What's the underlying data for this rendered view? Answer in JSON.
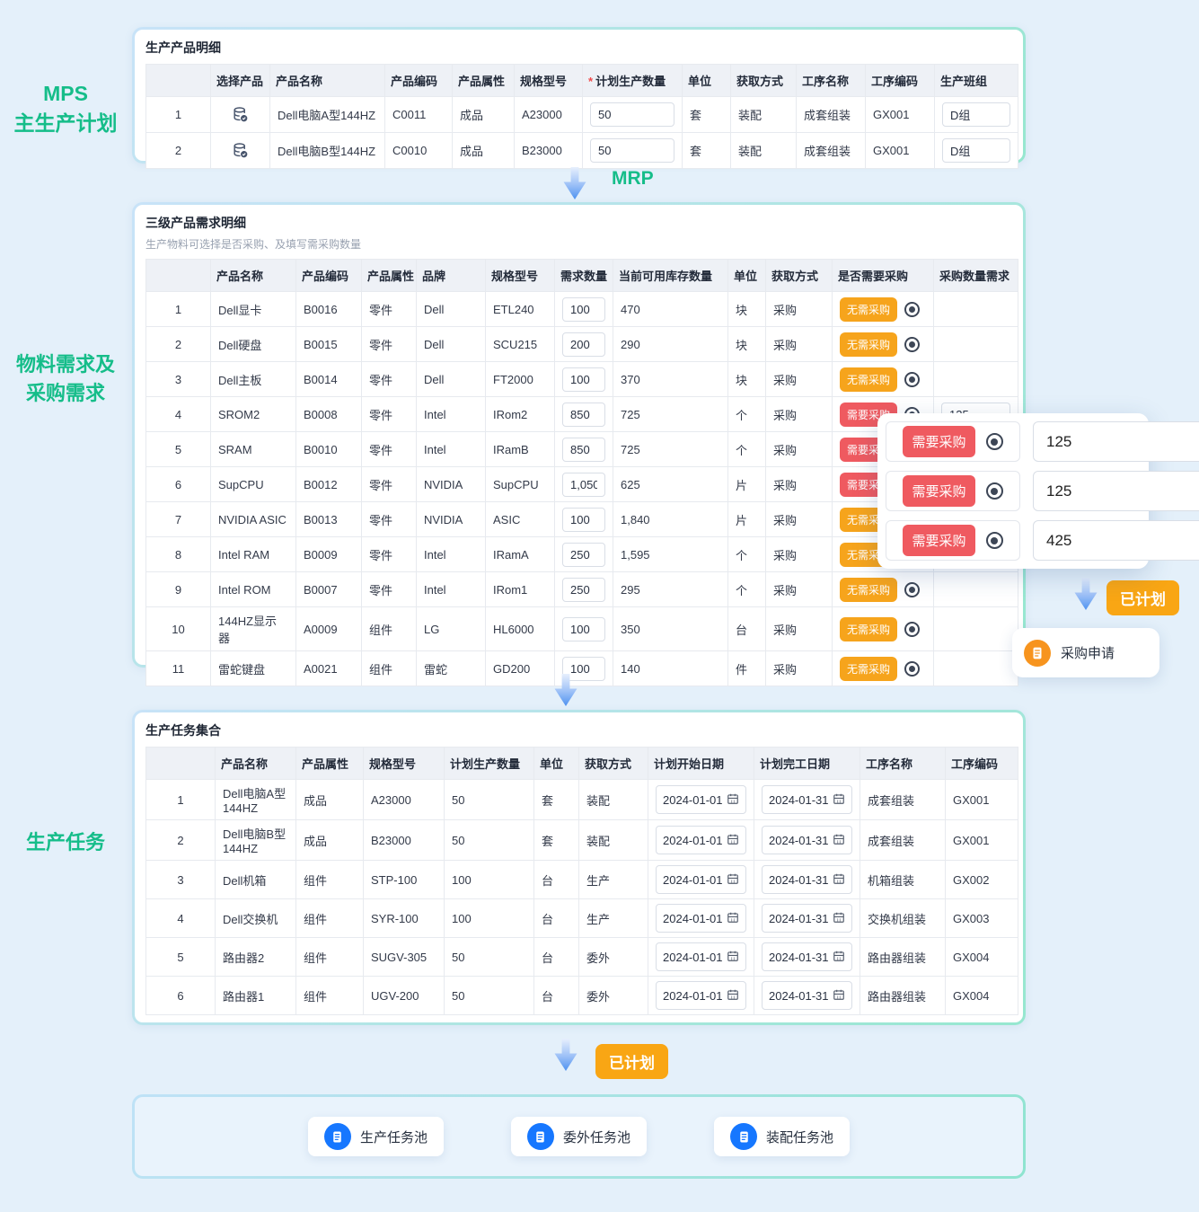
{
  "colors": {
    "accent_green": "#15bd89",
    "badge_orange": "#f6a41c",
    "badge_red": "#ef5a60",
    "icon_blue": "#1677ff",
    "icon_orange": "#f7941e"
  },
  "side_labels": {
    "mps": [
      "MPS",
      "主生产计划"
    ],
    "material": [
      "物料需求及",
      "采购需求"
    ],
    "task": "生产任务"
  },
  "flow": {
    "mrp_label": "MRP",
    "planned_label": "已计划",
    "purchase_request_label": "采购申请"
  },
  "badges": {
    "no_purchase": "无需采购",
    "need_purchase": "需要采购"
  },
  "mps_table": {
    "title": "生产产品明细",
    "required_marker": "*",
    "headers": [
      "",
      "选择产品",
      "产品名称",
      "产品编码",
      "产品属性",
      "规格型号",
      "计划生产数量",
      "单位",
      "获取方式",
      "工序名称",
      "工序编码",
      "生产班组"
    ],
    "rows": [
      {
        "index": "1",
        "name": "Dell电脑A型144HZ",
        "code": "C0011",
        "attr": "成品",
        "spec": "A23000",
        "qty": "50",
        "unit": "套",
        "method": "装配",
        "process": "成套组装",
        "process_code": "GX001",
        "team": "D组"
      },
      {
        "index": "2",
        "name": "Dell电脑B型144HZ",
        "code": "C0010",
        "attr": "成品",
        "spec": "B23000",
        "qty": "50",
        "unit": "套",
        "method": "装配",
        "process": "成套组装",
        "process_code": "GX001",
        "team": "D组"
      }
    ]
  },
  "mrp_table": {
    "title": "三级产品需求明细",
    "subtitle": "生产物料可选择是否采购、及填写需采购数量",
    "headers": [
      "",
      "产品名称",
      "产品编码",
      "产品属性",
      "品牌",
      "规格型号",
      "需求数量",
      "当前可用库存数量",
      "单位",
      "获取方式",
      "是否需要采购",
      "采购数量需求"
    ],
    "rows": [
      {
        "index": "1",
        "name": "Dell显卡",
        "code": "B0016",
        "attr": "零件",
        "brand": "Dell",
        "spec": "ETL240",
        "qty": "100",
        "stock": "470",
        "unit": "块",
        "method": "采购",
        "purchase": "no",
        "purchase_qty": ""
      },
      {
        "index": "2",
        "name": "Dell硬盘",
        "code": "B0015",
        "attr": "零件",
        "brand": "Dell",
        "spec": "SCU215",
        "qty": "200",
        "stock": "290",
        "unit": "块",
        "method": "采购",
        "purchase": "no",
        "purchase_qty": ""
      },
      {
        "index": "3",
        "name": "Dell主板",
        "code": "B0014",
        "attr": "零件",
        "brand": "Dell",
        "spec": "FT2000",
        "qty": "100",
        "stock": "370",
        "unit": "块",
        "method": "采购",
        "purchase": "no",
        "purchase_qty": ""
      },
      {
        "index": "4",
        "name": "SROM2",
        "code": "B0008",
        "attr": "零件",
        "brand": "Intel",
        "spec": "IRom2",
        "qty": "850",
        "stock": "725",
        "unit": "个",
        "method": "采购",
        "purchase": "need",
        "purchase_qty": "125"
      },
      {
        "index": "5",
        "name": "SRAM",
        "code": "B0010",
        "attr": "零件",
        "brand": "Intel",
        "spec": "IRamB",
        "qty": "850",
        "stock": "725",
        "unit": "个",
        "method": "采购",
        "purchase": "need",
        "purchase_qty": ""
      },
      {
        "index": "6",
        "name": "SupCPU",
        "code": "B0012",
        "attr": "零件",
        "brand": "NVIDIA",
        "spec": "SupCPU",
        "qty": "1,050",
        "stock": "625",
        "unit": "片",
        "method": "采购",
        "purchase": "need",
        "purchase_qty": ""
      },
      {
        "index": "7",
        "name": "NVIDIA ASIC",
        "code": "B0013",
        "attr": "零件",
        "brand": "NVIDIA",
        "spec": "ASIC",
        "qty": "100",
        "stock": "1,840",
        "unit": "片",
        "method": "采购",
        "purchase": "no",
        "purchase_qty": ""
      },
      {
        "index": "8",
        "name": "Intel RAM",
        "code": "B0009",
        "attr": "零件",
        "brand": "Intel",
        "spec": "IRamA",
        "qty": "250",
        "stock": "1,595",
        "unit": "个",
        "method": "采购",
        "purchase": "no",
        "purchase_qty": ""
      },
      {
        "index": "9",
        "name": "Intel ROM",
        "code": "B0007",
        "attr": "零件",
        "brand": "Intel",
        "spec": "IRom1",
        "qty": "250",
        "stock": "295",
        "unit": "个",
        "method": "采购",
        "purchase": "no",
        "purchase_qty": ""
      },
      {
        "index": "10",
        "name": "144HZ显示器",
        "code": "A0009",
        "attr": "组件",
        "brand": "LG",
        "spec": "HL6000",
        "qty": "100",
        "stock": "350",
        "unit": "台",
        "method": "采购",
        "purchase": "no",
        "purchase_qty": ""
      },
      {
        "index": "11",
        "name": "雷蛇键盘",
        "code": "A0021",
        "attr": "组件",
        "brand": "雷蛇",
        "spec": "GD200",
        "qty": "100",
        "stock": "140",
        "unit": "件",
        "method": "采购",
        "purchase": "no",
        "purchase_qty": ""
      }
    ]
  },
  "popup": {
    "rows": [
      {
        "badge": "需要采购",
        "qty": "125"
      },
      {
        "badge": "需要采购",
        "qty": "125"
      },
      {
        "badge": "需要采购",
        "qty": "425"
      }
    ]
  },
  "task_table": {
    "title": "生产任务集合",
    "headers": [
      "",
      "产品名称",
      "产品属性",
      "规格型号",
      "计划生产数量",
      "单位",
      "获取方式",
      "计划开始日期",
      "计划完工日期",
      "工序名称",
      "工序编码"
    ],
    "rows": [
      {
        "index": "1",
        "name": "Dell电脑A型144HZ",
        "attr": "成品",
        "spec": "A23000",
        "qty": "50",
        "unit": "套",
        "method": "装配",
        "start": "2024-01-01",
        "end": "2024-01-31",
        "process": "成套组装",
        "process_code": "GX001"
      },
      {
        "index": "2",
        "name": "Dell电脑B型144HZ",
        "attr": "成品",
        "spec": "B23000",
        "qty": "50",
        "unit": "套",
        "method": "装配",
        "start": "2024-01-01",
        "end": "2024-01-31",
        "process": "成套组装",
        "process_code": "GX001"
      },
      {
        "index": "3",
        "name": "Dell机箱",
        "attr": "组件",
        "spec": "STP-100",
        "qty": "100",
        "unit": "台",
        "method": "生产",
        "start": "2024-01-01",
        "end": "2024-01-31",
        "process": "机箱组装",
        "process_code": "GX002"
      },
      {
        "index": "4",
        "name": "Dell交换机",
        "attr": "组件",
        "spec": "SYR-100",
        "qty": "100",
        "unit": "台",
        "method": "生产",
        "start": "2024-01-01",
        "end": "2024-01-31",
        "process": "交换机组装",
        "process_code": "GX003"
      },
      {
        "index": "5",
        "name": "路由器2",
        "attr": "组件",
        "spec": "SUGV-305",
        "qty": "50",
        "unit": "台",
        "method": "委外",
        "start": "2024-01-01",
        "end": "2024-01-31",
        "process": "路由器组装",
        "process_code": "GX004"
      },
      {
        "index": "6",
        "name": "路由器1",
        "attr": "组件",
        "spec": "UGV-200",
        "qty": "50",
        "unit": "台",
        "method": "委外",
        "start": "2024-01-01",
        "end": "2024-01-31",
        "process": "路由器组装",
        "process_code": "GX004"
      }
    ]
  },
  "pools": [
    {
      "label": "生产任务池"
    },
    {
      "label": "委外任务池"
    },
    {
      "label": "装配任务池"
    }
  ]
}
